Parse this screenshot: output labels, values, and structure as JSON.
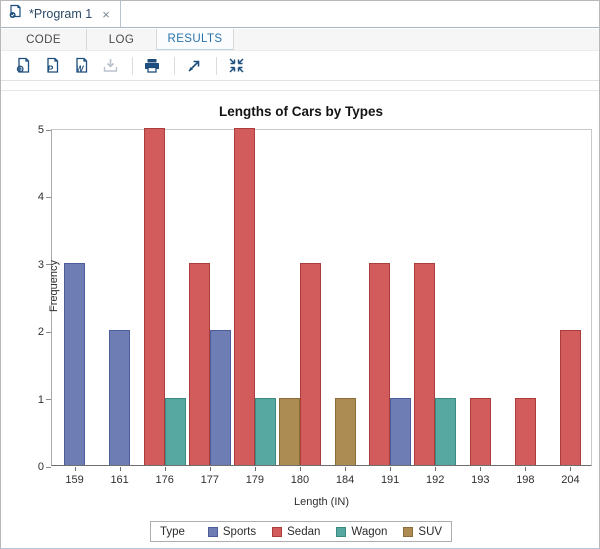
{
  "window": {
    "tab_label": "*Program 1",
    "close_icon": "×"
  },
  "tabs": {
    "code": "CODE",
    "log": "LOG",
    "results": "RESULTS"
  },
  "toolbar": {
    "icons": [
      "results-html",
      "results-pdf",
      "results-word",
      "download",
      "print",
      "open-in-new-window",
      "collapse-view"
    ],
    "icon_color": "#1d4e7d",
    "disabled_icon_color": "#b9c2cb"
  },
  "chart_data": {
    "type": "bar",
    "title": "Lengths of Cars by Types",
    "xlabel": "Length (IN)",
    "ylabel": "Frequency",
    "ylim": [
      0,
      5
    ],
    "yticks": [
      0,
      1,
      2,
      3,
      4,
      5
    ],
    "grid": false,
    "categories": [
      "159",
      "161",
      "176",
      "177",
      "179",
      "180",
      "184",
      "191",
      "192",
      "193",
      "198",
      "204"
    ],
    "series": [
      {
        "name": "Sports",
        "fill": "#6E7EB5",
        "border": "#4C5D99"
      },
      {
        "name": "Sedan",
        "fill": "#D25B5B",
        "border": "#AC3D3D"
      },
      {
        "name": "Wagon",
        "fill": "#57A8A0",
        "border": "#3B8B82"
      },
      {
        "name": "SUV",
        "fill": "#AC8C52",
        "border": "#8A6E39"
      }
    ],
    "bars": [
      {
        "category": "159",
        "series": "Sports",
        "value": 3
      },
      {
        "category": "161",
        "series": "Sports",
        "value": 2
      },
      {
        "category": "176",
        "series": "Sedan",
        "value": 5
      },
      {
        "category": "176",
        "series": "Wagon",
        "value": 1
      },
      {
        "category": "177",
        "series": "Sedan",
        "value": 3
      },
      {
        "category": "177",
        "series": "Sports",
        "value": 2
      },
      {
        "category": "179",
        "series": "Sedan",
        "value": 5
      },
      {
        "category": "179",
        "series": "Wagon",
        "value": 1
      },
      {
        "category": "180",
        "series": "SUV",
        "value": 1
      },
      {
        "category": "180",
        "series": "Sedan",
        "value": 3
      },
      {
        "category": "184",
        "series": "SUV",
        "value": 1
      },
      {
        "category": "191",
        "series": "Sedan",
        "value": 3
      },
      {
        "category": "191",
        "series": "Sports",
        "value": 1
      },
      {
        "category": "192",
        "series": "Sedan",
        "value": 3
      },
      {
        "category": "192",
        "series": "Wagon",
        "value": 1
      },
      {
        "category": "193",
        "series": "Sedan",
        "value": 1
      },
      {
        "category": "198",
        "series": "Sedan",
        "value": 1
      },
      {
        "category": "204",
        "series": "Sedan",
        "value": 2
      }
    ],
    "legend": {
      "title": "Type",
      "position": "bottom",
      "entries": [
        "Sports",
        "Sedan",
        "Wagon",
        "SUV"
      ]
    }
  }
}
